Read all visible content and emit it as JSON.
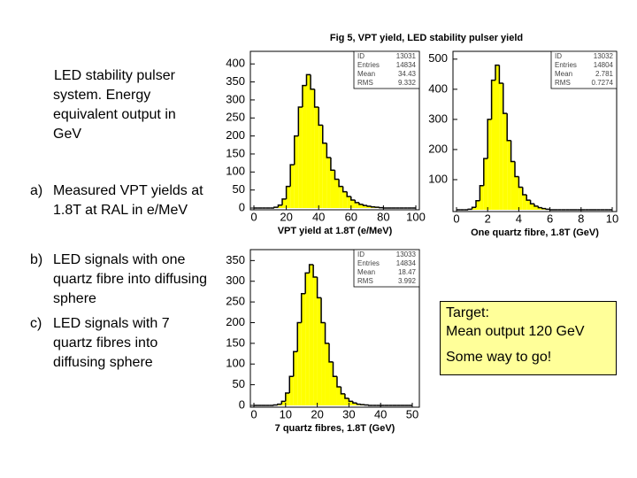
{
  "slide": {
    "intro": "LED stability pulser system. Energy equivalent output in GeV",
    "items": [
      {
        "marker": "a)",
        "text": "Measured VPT yields at 1.8T at RAL in e/MeV"
      },
      {
        "marker": "b)",
        "text": "LED signals with one quartz fibre into diffusing sphere"
      },
      {
        "marker": "c)",
        "text": "LED signals with 7 quartz fibres into diffusing sphere"
      }
    ],
    "note": {
      "lines": [
        "Target:",
        "Mean output 120 GeV"
      ],
      "remark": "Some way to go!"
    }
  },
  "figure_title": "Fig 5, VPT yield, LED stability pulser yield",
  "chart_data": [
    {
      "type": "histogram",
      "xlabel": "VPT yield at 1.8T (e/MeV)",
      "color": "#ffff00",
      "edgecolor": "#000000",
      "bins": [
        0,
        2.5,
        5,
        7.5,
        10,
        12.5,
        15,
        17.5,
        20,
        22.5,
        25,
        27.5,
        30,
        32.5,
        35,
        37.5,
        40,
        42.5,
        45,
        47.5,
        50,
        52.5,
        55,
        57.5,
        60,
        62.5,
        65,
        67.5,
        70,
        72.5,
        75,
        77.5,
        80,
        82.5,
        85,
        87.5,
        90,
        92.5,
        95,
        97.5,
        100
      ],
      "values": [
        0,
        0,
        0,
        0,
        0,
        2,
        8,
        25,
        60,
        120,
        200,
        280,
        340,
        370,
        330,
        280,
        230,
        180,
        140,
        105,
        80,
        60,
        45,
        32,
        22,
        15,
        10,
        7,
        5,
        3,
        2,
        1,
        0,
        0,
        0,
        0,
        0,
        0,
        0,
        0
      ],
      "xlim": [
        0,
        100
      ],
      "ylim": [
        0,
        430
      ],
      "xticks": [
        0,
        20,
        40,
        60,
        80,
        100
      ],
      "yticks": [
        0,
        50,
        100,
        150,
        200,
        250,
        300,
        350,
        400
      ],
      "stats": [
        {
          "label": "ID",
          "value": 13031
        },
        {
          "label": "Entries",
          "value": 14834
        },
        {
          "label": "Mean",
          "value": 34.43
        },
        {
          "label": "RMS",
          "value": 9.332
        }
      ]
    },
    {
      "type": "histogram",
      "xlabel": "One quartz fibre, 1.8T (GeV)",
      "color": "#ffff00",
      "edgecolor": "#000000",
      "bins": [
        0,
        0.25,
        0.5,
        0.75,
        1,
        1.25,
        1.5,
        1.75,
        2,
        2.25,
        2.5,
        2.75,
        3,
        3.25,
        3.5,
        3.75,
        4,
        4.25,
        4.5,
        4.75,
        5,
        5.25,
        5.5,
        5.75,
        6,
        6.25,
        6.5,
        6.75,
        7,
        7.25,
        7.5,
        7.75,
        8,
        8.25,
        8.5,
        8.75,
        9,
        9.25,
        9.5,
        9.75,
        10
      ],
      "values": [
        0,
        0,
        0,
        2,
        8,
        30,
        80,
        170,
        300,
        430,
        480,
        420,
        320,
        230,
        160,
        110,
        75,
        50,
        32,
        20,
        12,
        7,
        4,
        2,
        0,
        0,
        0,
        0,
        0,
        0,
        0,
        0,
        0,
        0,
        0,
        0,
        0,
        0,
        0,
        0
      ],
      "xlim": [
        0,
        10
      ],
      "ylim": [
        0,
        520
      ],
      "xticks": [
        0,
        2,
        4,
        6,
        8,
        10
      ],
      "yticks": [
        100,
        200,
        300,
        400,
        500
      ],
      "stats": [
        {
          "label": "ID",
          "value": 13032
        },
        {
          "label": "Entries",
          "value": 14804
        },
        {
          "label": "Mean",
          "value": 2.781
        },
        {
          "label": "RMS",
          "value": 0.7274
        }
      ]
    },
    {
      "type": "histogram",
      "xlabel": "7 quartz fibres, 1.8T (GeV)",
      "color": "#ffff00",
      "edgecolor": "#000000",
      "bins": [
        0,
        1.25,
        2.5,
        3.75,
        5,
        6.25,
        7.5,
        8.75,
        10,
        11.25,
        12.5,
        13.75,
        15,
        16.25,
        17.5,
        18.75,
        20,
        21.25,
        22.5,
        23.75,
        25,
        26.25,
        27.5,
        28.75,
        30,
        31.25,
        32.5,
        33.75,
        35,
        36.25,
        37.5,
        38.75,
        40,
        41.25,
        42.5,
        43.75,
        45,
        46.25,
        47.5,
        48.75,
        50
      ],
      "values": [
        0,
        0,
        0,
        0,
        0,
        1,
        3,
        10,
        30,
        70,
        130,
        200,
        270,
        320,
        340,
        310,
        260,
        200,
        150,
        105,
        70,
        45,
        28,
        17,
        10,
        6,
        3,
        2,
        1,
        0,
        0,
        0,
        0,
        0,
        0,
        0,
        0,
        0,
        0,
        0
      ],
      "xlim": [
        0,
        50
      ],
      "ylim": [
        0,
        370
      ],
      "xticks": [
        0,
        10,
        20,
        30,
        40,
        50
      ],
      "yticks": [
        0,
        50,
        100,
        150,
        200,
        250,
        300,
        350
      ],
      "stats": [
        {
          "label": "ID",
          "value": 13033
        },
        {
          "label": "Entries",
          "value": 14834
        },
        {
          "label": "Mean",
          "value": 18.47
        },
        {
          "label": "RMS",
          "value": 3.992
        }
      ]
    }
  ]
}
